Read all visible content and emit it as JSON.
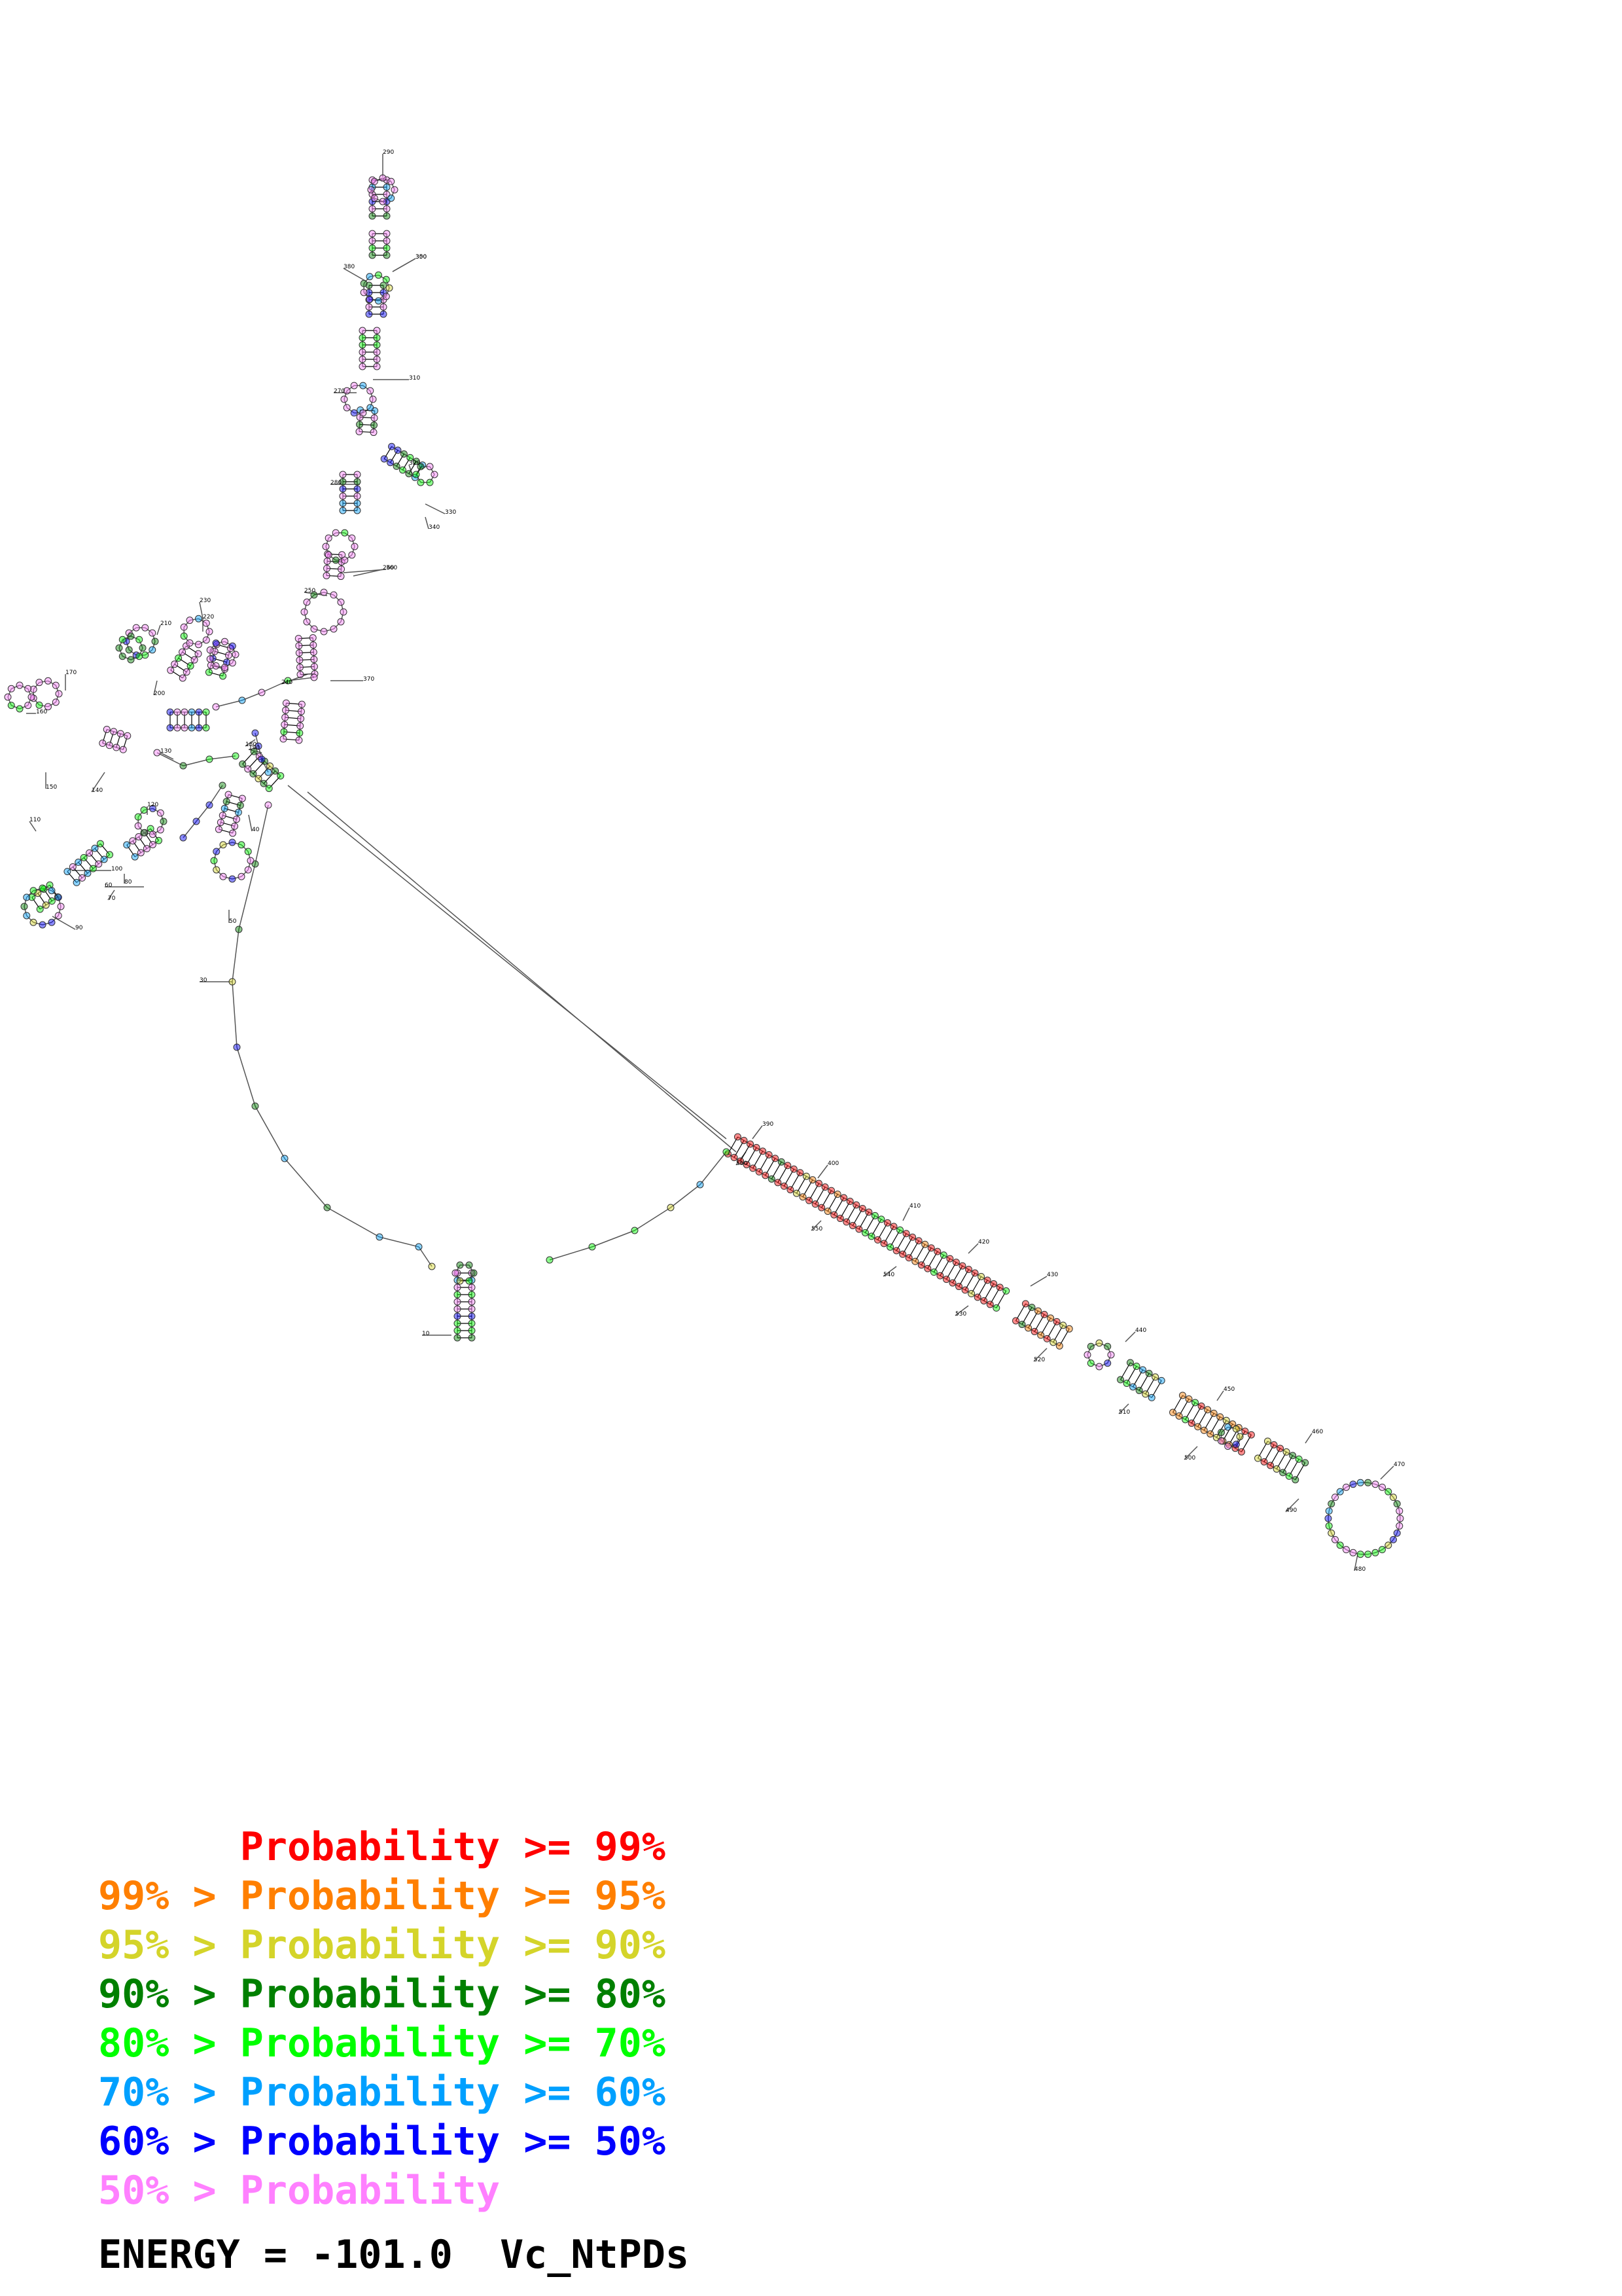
{
  "colors": {
    "p99": "#ff0000",
    "p95": "#ff7f00",
    "p90": "#d4d42a",
    "p80": "#008000",
    "p70": "#00ff00",
    "p60": "#00a0ff",
    "p50": "#0000ff",
    "plt50": "#ff80ff"
  },
  "legend": [
    {
      "prefix": "",
      "label": "Probability >= 99%",
      "color": "#ff0000"
    },
    {
      "prefix": "99% > ",
      "label": "Probability >= 95%",
      "color": "#ff7f00"
    },
    {
      "prefix": "95% > ",
      "label": "Probability >= 90%",
      "color": "#d4d42a"
    },
    {
      "prefix": "90% > ",
      "label": "Probability >= 80%",
      "color": "#008000"
    },
    {
      "prefix": "80% > ",
      "label": "Probability >= 70%",
      "color": "#00ff00"
    },
    {
      "prefix": "70% > ",
      "label": "Probability >= 60%",
      "color": "#00a0ff"
    },
    {
      "prefix": "60% > ",
      "label": "Probability >= 50%",
      "color": "#0000ff"
    },
    {
      "prefix": "50% > ",
      "label": "Probability",
      "color": "#ff80ff"
    }
  ],
  "energy": {
    "label": "ENERGY = -101.0",
    "name": "Vc_NtPDs"
  },
  "position_labels": [
    "10",
    "30",
    "40",
    "50",
    "60",
    "70",
    "80",
    "90",
    "100",
    "110",
    "120",
    "130",
    "140",
    "150",
    "160",
    "170",
    "180",
    "190",
    "200",
    "210",
    "220",
    "230",
    "240",
    "250",
    "260",
    "270",
    "280",
    "290",
    "300",
    "310",
    "320",
    "330",
    "340",
    "350",
    "360",
    "370",
    "380",
    "390",
    "400",
    "410",
    "420",
    "430",
    "440",
    "450",
    "460",
    "470",
    "480",
    "490",
    "500",
    "510",
    "520",
    "530",
    "540",
    "550",
    "560"
  ]
}
